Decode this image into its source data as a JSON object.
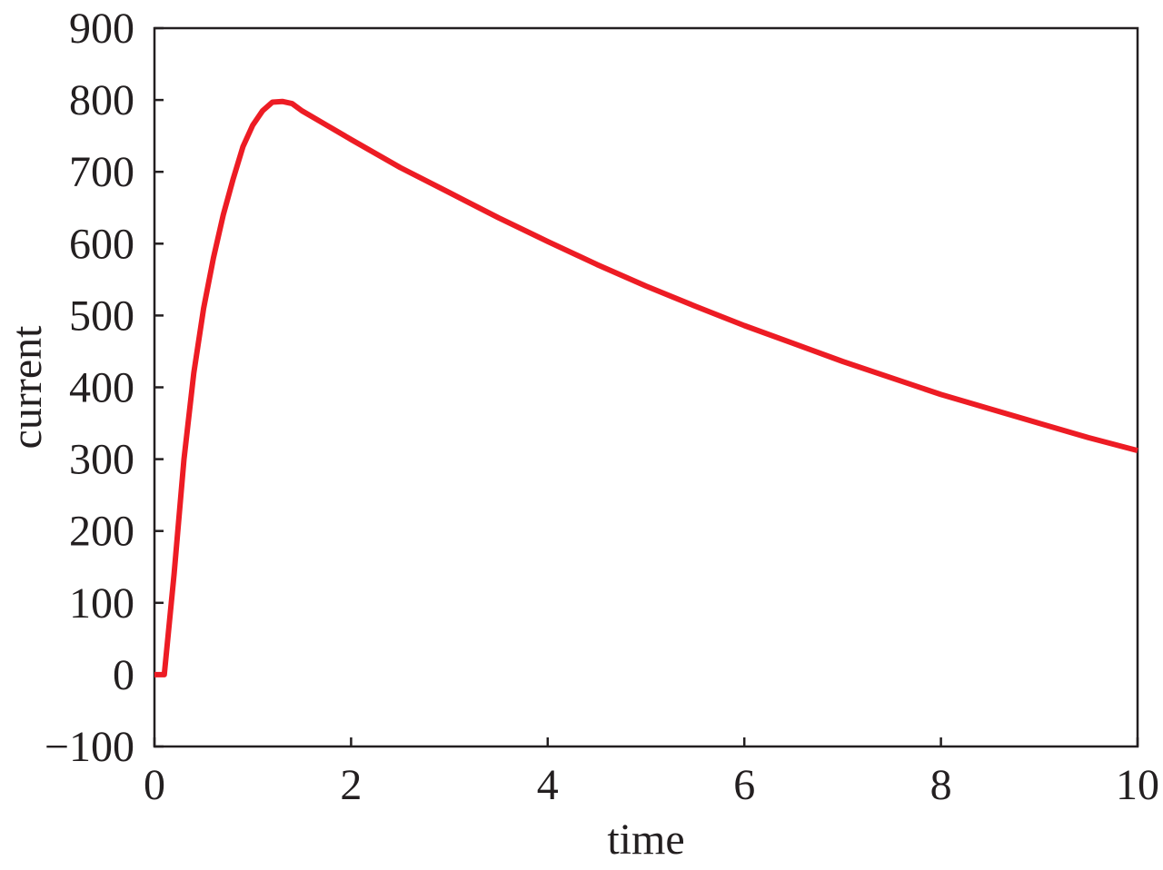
{
  "chart_data": {
    "type": "line",
    "title": "",
    "xlabel": "time",
    "ylabel": "current",
    "xlim": [
      0,
      10
    ],
    "ylim": [
      -100,
      900
    ],
    "xticks": [
      0,
      2,
      4,
      6,
      8,
      10
    ],
    "xtick_labels": [
      "0",
      "2",
      "4",
      "6",
      "8",
      "10"
    ],
    "yticks": [
      -100,
      0,
      100,
      200,
      300,
      400,
      500,
      600,
      700,
      800,
      900
    ],
    "ytick_labels": [
      "−100",
      "0",
      "100",
      "200",
      "300",
      "400",
      "500",
      "600",
      "700",
      "800",
      "900"
    ],
    "grid": false,
    "legend": "none",
    "series": [
      {
        "color": "#ed1c24",
        "x": [
          0,
          0.1,
          0.2,
          0.3,
          0.4,
          0.5,
          0.6,
          0.7,
          0.8,
          0.9,
          1.0,
          1.1,
          1.2,
          1.3,
          1.4,
          1.5,
          1.75,
          2.0,
          2.5,
          3.0,
          3.5,
          4.0,
          4.5,
          5.0,
          5.5,
          6.0,
          6.5,
          7.0,
          7.5,
          8.0,
          8.5,
          9.0,
          9.5,
          10.0
        ],
        "y": [
          0,
          0,
          140,
          300,
          420,
          510,
          580,
          640,
          690,
          735,
          765,
          785,
          797,
          798,
          795,
          785,
          765,
          745,
          706,
          671,
          636,
          603,
          571,
          541,
          513,
          486,
          461,
          436,
          413,
          390,
          370,
          350,
          330,
          312
        ]
      }
    ]
  }
}
